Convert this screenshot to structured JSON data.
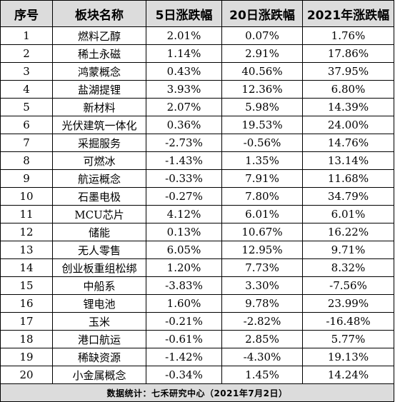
{
  "table": {
    "headers": [
      "序号",
      "板块名称",
      "5日涨跌幅",
      "20日涨跌幅",
      "2021年涨跌幅"
    ],
    "rows": [
      [
        "1",
        "燃料乙醇",
        "2.01%",
        "0.07%",
        "1.76%"
      ],
      [
        "2",
        "稀土永磁",
        "1.14%",
        "2.91%",
        "17.86%"
      ],
      [
        "3",
        "鸿蒙概念",
        "0.43%",
        "40.56%",
        "37.95%"
      ],
      [
        "4",
        "盐湖提锂",
        "3.93%",
        "12.36%",
        "6.80%"
      ],
      [
        "5",
        "新材料",
        "2.07%",
        "5.98%",
        "14.39%"
      ],
      [
        "6",
        "光伏建筑一体化",
        "0.36%",
        "19.53%",
        "24.00%"
      ],
      [
        "7",
        "采掘服务",
        "-2.73%",
        "-0.56%",
        "14.76%"
      ],
      [
        "8",
        "可燃冰",
        "-1.43%",
        "1.35%",
        "13.14%"
      ],
      [
        "9",
        "航运概念",
        "-0.33%",
        "7.91%",
        "11.68%"
      ],
      [
        "10",
        "石墨电极",
        "-0.27%",
        "7.80%",
        "34.79%"
      ],
      [
        "11",
        "MCU芯片",
        "4.12%",
        "6.01%",
        "6.01%"
      ],
      [
        "12",
        "储能",
        "0.13%",
        "10.67%",
        "16.22%"
      ],
      [
        "13",
        "无人零售",
        "6.05%",
        "12.95%",
        "9.71%"
      ],
      [
        "14",
        "创业板重组松绑",
        "1.20%",
        "7.73%",
        "8.32%"
      ],
      [
        "15",
        "中船系",
        "-3.83%",
        "3.30%",
        "-7.56%"
      ],
      [
        "16",
        "锂电池",
        "1.60%",
        "9.78%",
        "23.99%"
      ],
      [
        "17",
        "玉米",
        "-0.21%",
        "-2.82%",
        "-16.48%"
      ],
      [
        "18",
        "港口航运",
        "-0.61%",
        "2.85%",
        "5.77%"
      ],
      [
        "19",
        "稀缺资源",
        "-1.42%",
        "-4.30%",
        "19.13%"
      ],
      [
        "20",
        "小金属概念",
        "-0.34%",
        "1.45%",
        "14.24%"
      ]
    ],
    "footer": "数据统计：七禾研究中心（2021年7月2日）"
  },
  "colors": {
    "header_background": "#dcdcdc",
    "footer_background": "#dcdcdc",
    "border": "#000000",
    "text": "#000000"
  }
}
